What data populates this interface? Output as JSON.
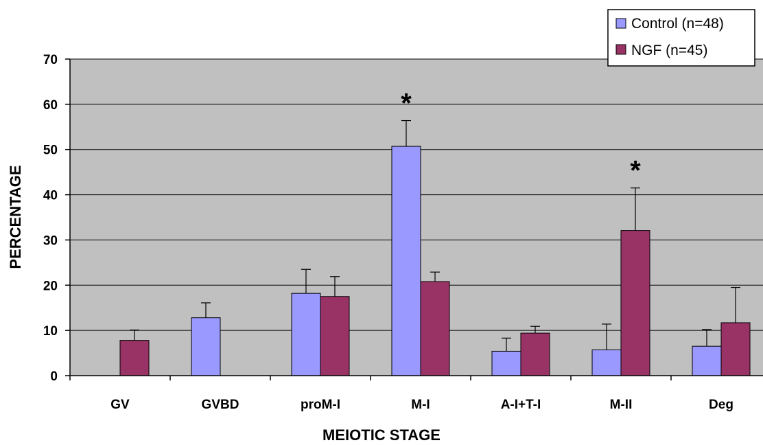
{
  "chart_data": {
    "type": "bar",
    "categories": [
      "GV",
      "GVBD",
      "proM-I",
      "M-I",
      "A-I+T-I",
      "M-II",
      "Deg"
    ],
    "series": [
      {
        "name": "Control (n=48)",
        "color": "#9999ff",
        "values": [
          0,
          12.8,
          18.2,
          50.7,
          5.4,
          5.7,
          6.5
        ],
        "errors": [
          0,
          3.3,
          5.3,
          5.7,
          2.9,
          5.7,
          3.7
        ]
      },
      {
        "name": "NGF (n=45)",
        "color": "#993366",
        "values": [
          7.8,
          0,
          17.5,
          20.8,
          9.4,
          32.1,
          11.7
        ],
        "errors": [
          2.3,
          0,
          4.4,
          2.1,
          1.5,
          9.4,
          7.8
        ]
      }
    ],
    "significance": [
      {
        "category": "M-I",
        "series": 0,
        "label": "*"
      },
      {
        "category": "M-II",
        "series": 1,
        "label": "*"
      }
    ],
    "title": "",
    "xlabel": "MEIOTIC STAGE",
    "ylabel": "PERCENTAGE",
    "ylim": [
      0,
      70
    ],
    "yticks": [
      0,
      10,
      20,
      30,
      40,
      50,
      60,
      70
    ],
    "grid": true,
    "plot_background": "#c0c0c0",
    "legend_position": "top-right"
  }
}
